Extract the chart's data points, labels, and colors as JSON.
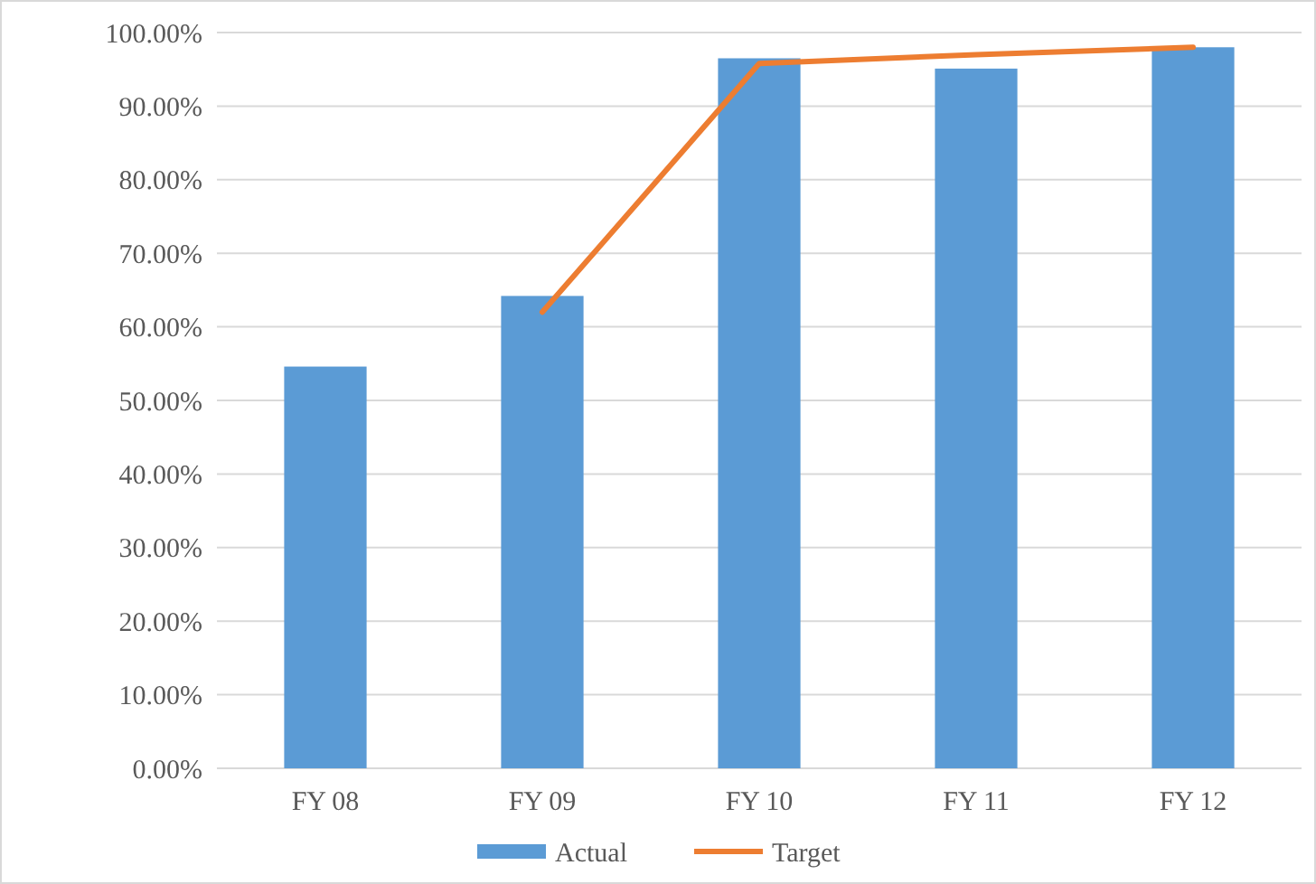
{
  "chart_data": {
    "type": "bar",
    "categories": [
      "FY 08",
      "FY 09",
      "FY 10",
      "FY 11",
      "FY 12"
    ],
    "series": [
      {
        "name": "Actual",
        "color": "#5b9bd5",
        "values": [
          54.6,
          64.2,
          96.5,
          95.1,
          98.0
        ]
      },
      {
        "name": "Target",
        "type": "line",
        "color": "#ed7d31",
        "values": [
          null,
          62,
          95.8,
          97,
          98
        ]
      }
    ],
    "ylim": [
      0,
      100
    ],
    "yticks": [
      {
        "value": 0,
        "label": "0.00%"
      },
      {
        "value": 10,
        "label": "10.00%"
      },
      {
        "value": 20,
        "label": "20.00%"
      },
      {
        "value": 30,
        "label": "30.00%"
      },
      {
        "value": 40,
        "label": "40.00%"
      },
      {
        "value": 50,
        "label": "50.00%"
      },
      {
        "value": 60,
        "label": "60.00%"
      },
      {
        "value": 70,
        "label": "70.00%"
      },
      {
        "value": 80,
        "label": "80.00%"
      },
      {
        "value": 90,
        "label": "90.00%"
      },
      {
        "value": 100,
        "label": "100.00%"
      }
    ],
    "grid": "y",
    "legend": "bottom",
    "marker": "none",
    "line_style": "solid"
  }
}
